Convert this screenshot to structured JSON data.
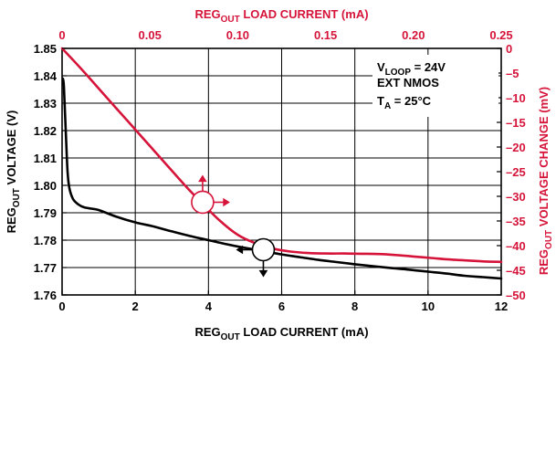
{
  "chart_data": {
    "type": "line",
    "title": "",
    "x_bottom": {
      "label_main": "REG",
      "label_sub": "OUT",
      "label_rest": " LOAD CURRENT (mA)",
      "range": [
        0,
        12
      ],
      "ticks": [
        "0",
        "2",
        "4",
        "6",
        "8",
        "10",
        "12"
      ],
      "tick_values": [
        0,
        2,
        4,
        6,
        8,
        10,
        12
      ]
    },
    "x_top": {
      "label_main": "REG",
      "label_sub": "OUT",
      "label_rest": " LOAD CURRENT (mA)",
      "range": [
        0,
        0.25
      ],
      "ticks": [
        "0",
        "0.05",
        "0.10",
        "0.15",
        "0.20",
        "0.25"
      ],
      "tick_values": [
        0,
        0.05,
        0.1,
        0.15,
        0.2,
        0.25
      ]
    },
    "y_left": {
      "label_main": "REG",
      "label_sub": "OUT",
      "label_rest": " VOLTAGE (V)",
      "range": [
        1.76,
        1.85
      ],
      "ticks": [
        "1.76",
        "1.77",
        "1.78",
        "1.79",
        "1.80",
        "1.81",
        "1.82",
        "1.83",
        "1.84",
        "1.85"
      ],
      "tick_values": [
        1.76,
        1.77,
        1.78,
        1.79,
        1.8,
        1.81,
        1.82,
        1.83,
        1.84,
        1.85
      ]
    },
    "y_right": {
      "label_main": "REG",
      "label_sub": "OUT",
      "label_rest": " VOLTAGE CHANGE (mV)",
      "range": [
        -50,
        0
      ],
      "ticks": [
        "0",
        "–5",
        "–10",
        "–15",
        "–20",
        "–25",
        "–30",
        "–35",
        "–40",
        "–45",
        "–50"
      ],
      "tick_values": [
        0,
        -5,
        -10,
        -15,
        -20,
        -25,
        -30,
        -35,
        -40,
        -45,
        -50
      ]
    },
    "grid": true,
    "colors": {
      "black_series": "#000000",
      "red_series": "#d6143a"
    },
    "annotation": {
      "line1_main": "V",
      "line1_sub": "LOOP",
      "line1_rest": " = 24V",
      "line2": "EXT NMOS",
      "line3_main": "T",
      "line3_sub": "A",
      "line3_rest": " = 25°C"
    },
    "series": [
      {
        "axis": "bottom-left",
        "color": "#000000",
        "x": [
          0.02,
          0.05,
          0.1,
          0.15,
          0.2,
          0.3,
          0.45,
          0.6,
          0.8,
          1.0,
          1.5,
          2,
          2.5,
          3,
          3.5,
          4,
          4.5,
          5,
          5.5,
          6,
          6.5,
          7,
          7.5,
          8,
          8.5,
          9,
          9.5,
          10,
          10.5,
          11,
          11.5,
          12
        ],
        "y": [
          1.839,
          1.836,
          1.82,
          1.805,
          1.799,
          1.795,
          1.793,
          1.792,
          1.7915,
          1.791,
          1.7885,
          1.7865,
          1.785,
          1.7832,
          1.7815,
          1.78,
          1.7785,
          1.7772,
          1.776,
          1.7748,
          1.7738,
          1.7728,
          1.772,
          1.7712,
          1.7705,
          1.7698,
          1.7692,
          1.7685,
          1.7678,
          1.767,
          1.7665,
          1.766
        ]
      },
      {
        "axis": "top-right",
        "color": "#d6143a",
        "x": [
          0,
          0.01,
          0.02,
          0.03,
          0.04,
          0.05,
          0.06,
          0.07,
          0.08,
          0.09,
          0.1,
          0.11,
          0.12,
          0.13,
          0.14,
          0.15,
          0.16,
          0.17,
          0.18,
          0.19,
          0.2,
          0.21,
          0.22,
          0.23,
          0.24,
          0.25
        ],
        "y": [
          0,
          -3.8,
          -7.8,
          -11.8,
          -15.8,
          -19.8,
          -23.8,
          -27.8,
          -31.5,
          -35,
          -37.8,
          -39.5,
          -40.6,
          -41.2,
          -41.5,
          -41.6,
          -41.6,
          -41.65,
          -41.7,
          -41.9,
          -42.2,
          -42.5,
          -42.8,
          -43.0,
          -43.2,
          -43.3
        ]
      }
    ]
  }
}
